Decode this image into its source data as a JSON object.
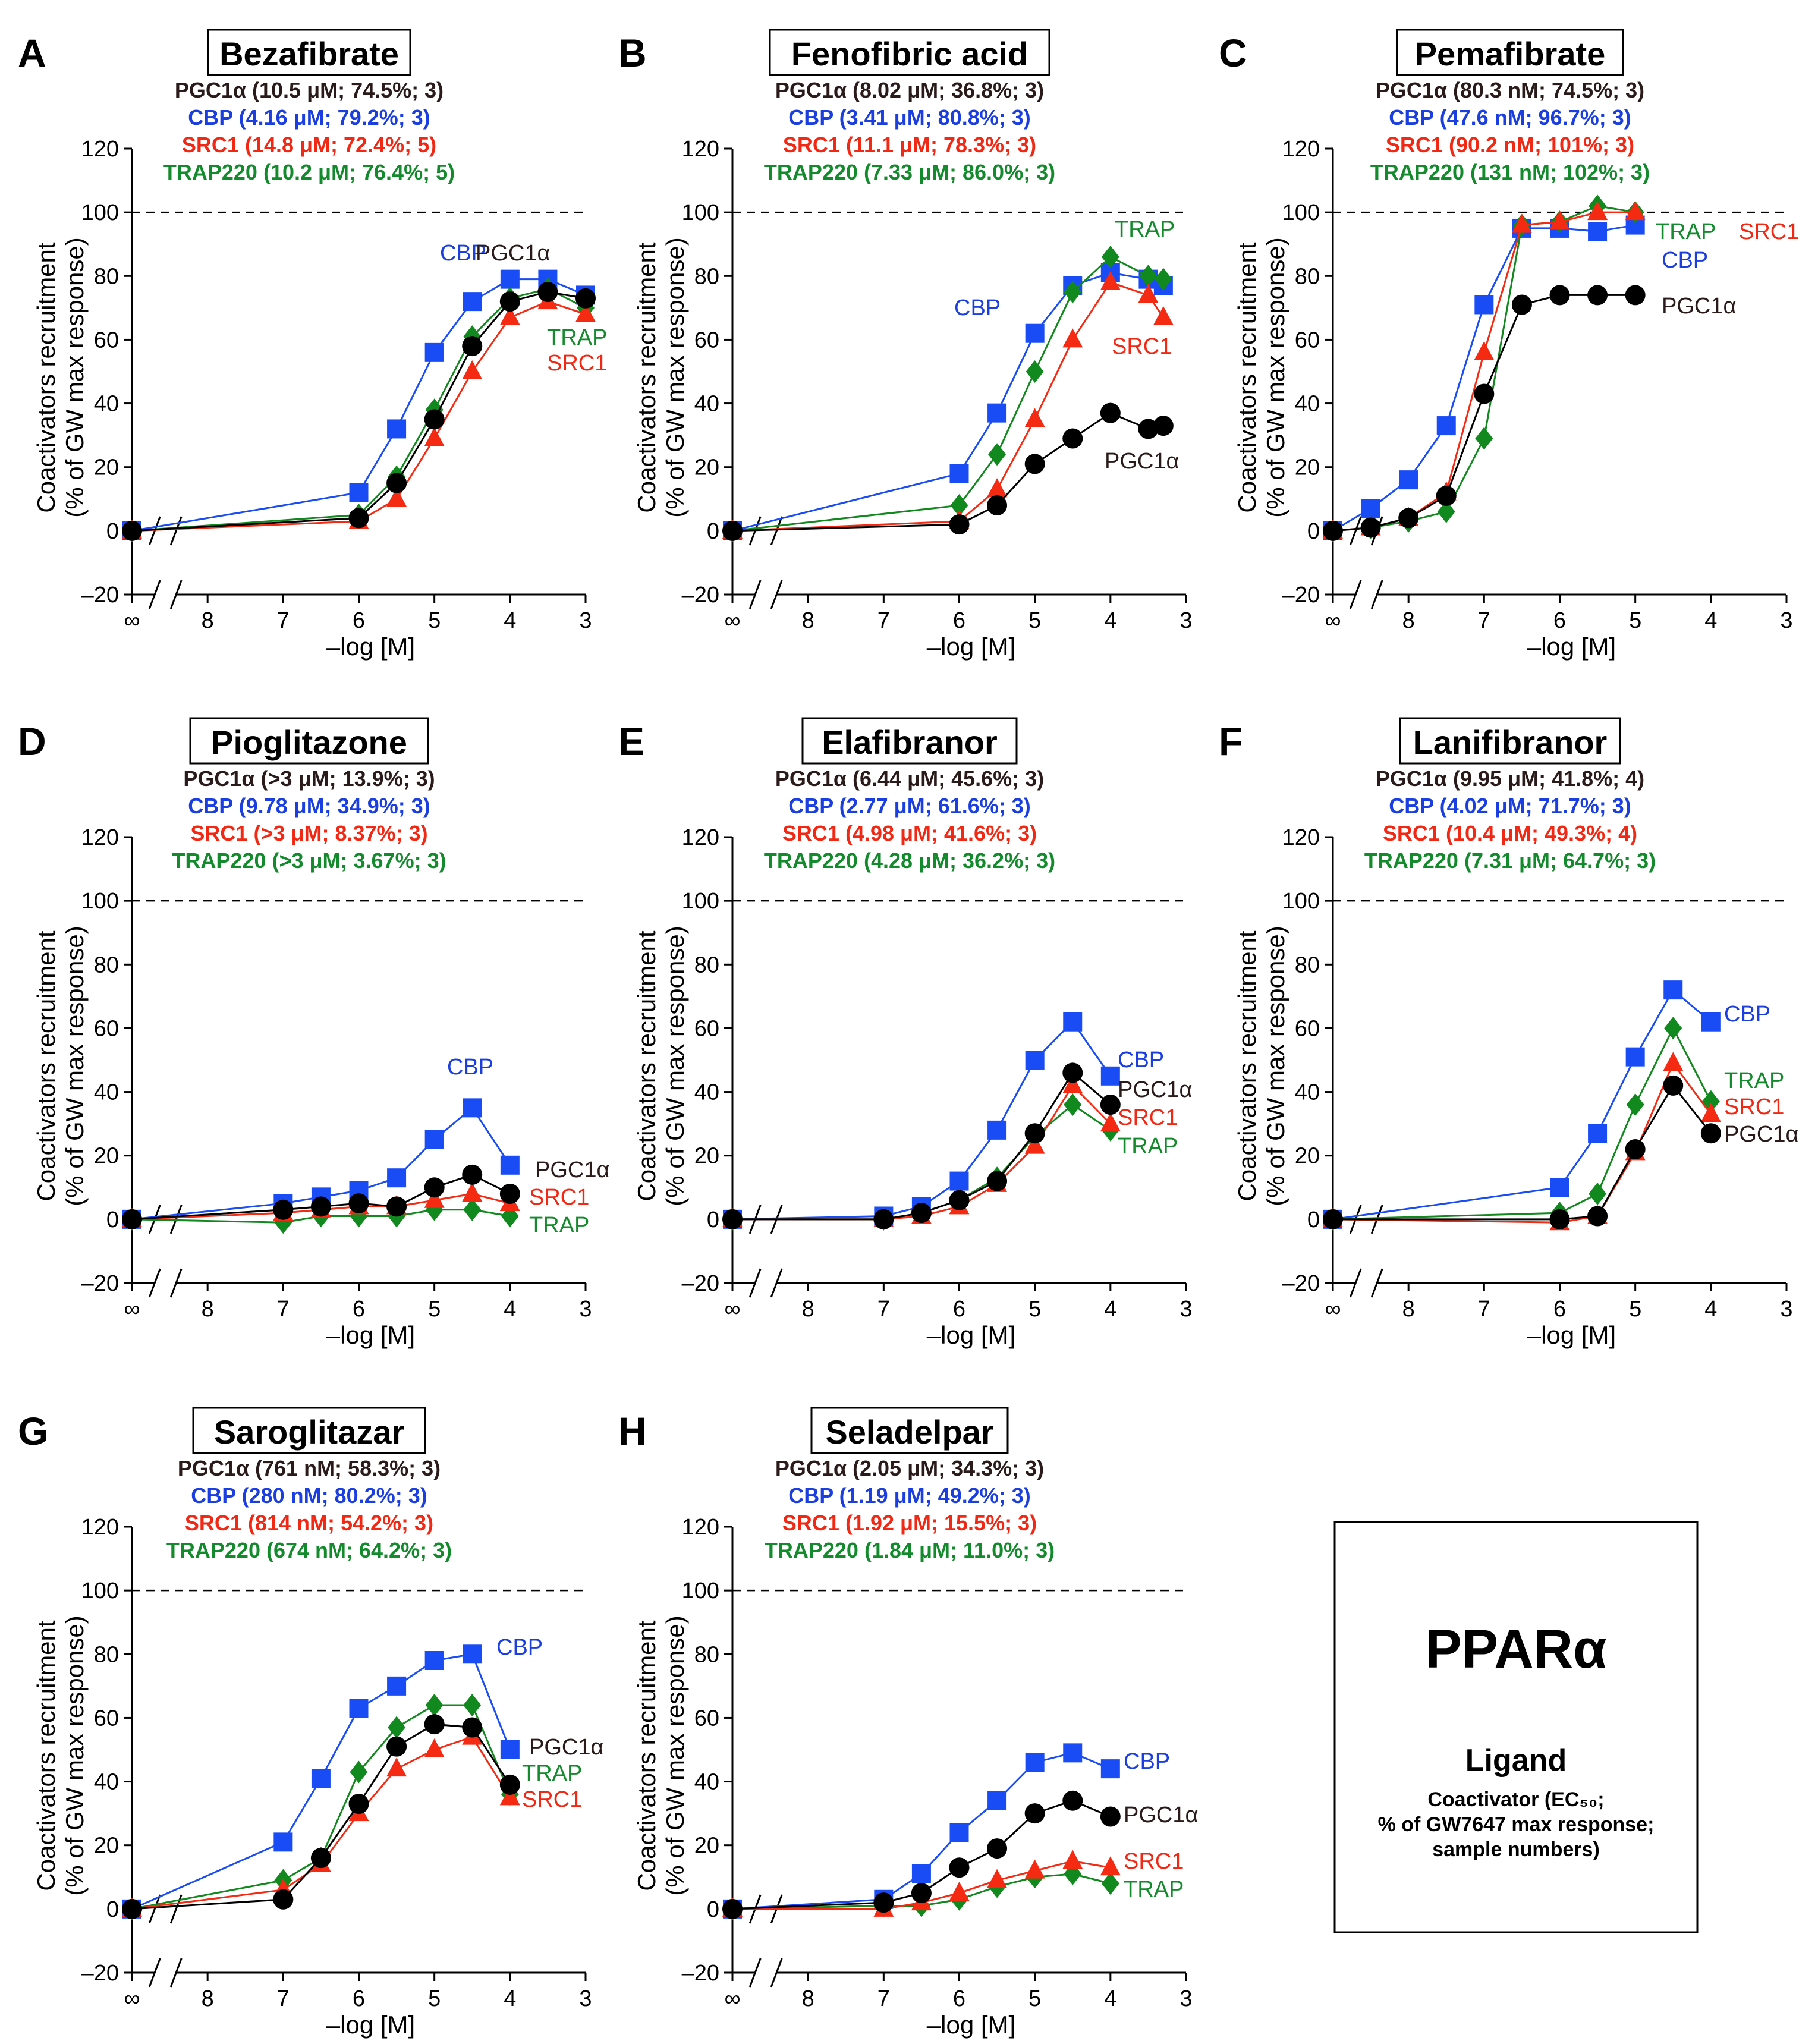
{
  "colors": {
    "PGC1a": "#000000",
    "CBP": "#1a4cf5",
    "SRC1": "#f52a12",
    "TRAP": "#12891e",
    "PGC1a_text": "#2b1a1a",
    "CBP_text": "#1a3ee0",
    "SRC1_text": "#f02814",
    "TRAP_text": "#138a2c"
  },
  "legend": {
    "title": "PPARα",
    "ligand": "Ligand",
    "line1": "Coactivator (EC₅₀;",
    "line2": "% of GW7647 max response;",
    "line3": "sample numbers)"
  },
  "chart_data": [
    {
      "panel": "A",
      "type": "line",
      "title": "Bezafibrate",
      "summary": [
        "PGC1α (10.5 μM; 74.5%; 3)",
        "CBP (4.16 μM; 79.2%; 3)",
        "SRC1 (14.8 μM; 72.4%; 5)",
        "TRAP220 (10.2 μM; 76.4%; 5)"
      ],
      "xlabel": "–log [M]",
      "ylabel": [
        "Coactivators recruitment",
        "(% of GW max response)"
      ],
      "x_ticks": [
        "∞",
        "8",
        "7",
        "6",
        "5",
        "4",
        "3"
      ],
      "y_ticks": [
        "–20",
        "0",
        "20",
        "40",
        "60",
        "80",
        "100",
        "120"
      ],
      "xlim": [
        9,
        3
      ],
      "ylim": [
        -20,
        120
      ],
      "reference_line": 100,
      "x": [
        9,
        6,
        5.5,
        5,
        4.5,
        4,
        3.5,
        3
      ],
      "series": [
        {
          "name": "PGC1α",
          "values": [
            0,
            4,
            15,
            35,
            58,
            72,
            75,
            73
          ],
          "label": "PGC1α"
        },
        {
          "name": "CBP",
          "values": [
            0,
            12,
            32,
            56,
            72,
            79,
            79,
            74
          ],
          "label": "CBP"
        },
        {
          "name": "SRC1",
          "values": [
            0,
            3,
            10,
            29,
            50,
            67,
            72,
            68
          ],
          "label": "SRC1"
        },
        {
          "name": "TRAP",
          "values": [
            0,
            5,
            17,
            38,
            61,
            73,
            76,
            70
          ],
          "label": "TRAP"
        }
      ]
    },
    {
      "panel": "B",
      "type": "line",
      "title": "Fenofibric acid",
      "summary": [
        "PGC1α (8.02 μM; 36.8%; 3)",
        "CBP (3.41 μM; 80.8%; 3)",
        "SRC1 (11.1 μM; 78.3%; 3)",
        "TRAP220 (7.33 μM; 86.0%; 3)"
      ],
      "xlabel": "–log [M]",
      "ylabel": [
        "Coactivators recruitment",
        "(% of GW max response)"
      ],
      "x_ticks": [
        "∞",
        "8",
        "7",
        "6",
        "5",
        "4",
        "3"
      ],
      "y_ticks": [
        "–20",
        "0",
        "20",
        "40",
        "60",
        "80",
        "100",
        "120"
      ],
      "xlim": [
        9,
        3
      ],
      "ylim": [
        -20,
        120
      ],
      "reference_line": 100,
      "x": [
        9,
        6,
        5.5,
        5,
        4.5,
        4,
        3.5,
        3.3
      ],
      "series": [
        {
          "name": "PGC1α",
          "values": [
            0,
            2,
            8,
            21,
            29,
            37,
            32,
            33
          ],
          "label": "PGC1α"
        },
        {
          "name": "CBP",
          "values": [
            0,
            18,
            37,
            62,
            77,
            81,
            79,
            77
          ],
          "label": "CBP"
        },
        {
          "name": "SRC1",
          "values": [
            0,
            3,
            13,
            35,
            60,
            78,
            74,
            67
          ],
          "label": "SRC1"
        },
        {
          "name": "TRAP",
          "values": [
            0,
            8,
            24,
            50,
            75,
            86,
            80,
            79
          ],
          "label": "TRAP"
        }
      ]
    },
    {
      "panel": "C",
      "type": "line",
      "title": "Pemafibrate",
      "summary": [
        "PGC1α (80.3 nM; 74.5%; 3)",
        "CBP (47.6 nM; 96.7%; 3)",
        "SRC1 (90.2 nM; 101%; 3)",
        "TRAP220 (131 nM; 102%; 3)"
      ],
      "xlabel": "–log [M]",
      "ylabel": [
        "Coactivators recruitment",
        "(% of GW max response)"
      ],
      "x_ticks": [
        "∞",
        "8",
        "7",
        "6",
        "5",
        "4",
        "3"
      ],
      "y_ticks": [
        "–20",
        "0",
        "20",
        "40",
        "60",
        "80",
        "100",
        "120"
      ],
      "xlim": [
        9,
        3
      ],
      "ylim": [
        -20,
        120
      ],
      "reference_line": 100,
      "x": [
        9,
        8.5,
        8,
        7.5,
        7,
        6.5,
        6,
        5.5,
        5
      ],
      "series": [
        {
          "name": "PGC1α",
          "values": [
            0,
            1,
            4,
            11,
            43,
            71,
            74,
            74,
            74
          ],
          "label": "PGC1α"
        },
        {
          "name": "CBP",
          "values": [
            0,
            7,
            16,
            33,
            71,
            95,
            95,
            94,
            96
          ],
          "label": "CBP"
        },
        {
          "name": "SRC1",
          "values": [
            0,
            1,
            4,
            12,
            56,
            96,
            97,
            100,
            100
          ],
          "label": "SRC1"
        },
        {
          "name": "TRAP",
          "values": [
            0,
            1,
            3,
            6,
            29,
            96,
            97,
            102,
            100
          ],
          "label": "TRAP"
        }
      ]
    },
    {
      "panel": "D",
      "type": "line",
      "title": "Pioglitazone",
      "summary": [
        "PGC1α (>3 μM; 13.9%; 3)",
        "CBP (9.78 μM; 34.9%; 3)",
        "SRC1 (>3 μM; 8.37%; 3)",
        "TRAP220 (>3 μM; 3.67%; 3)"
      ],
      "xlabel": "–log [M]",
      "ylabel": [
        "Coactivators recruitment",
        "(% of GW max response)"
      ],
      "x_ticks": [
        "∞",
        "8",
        "7",
        "6",
        "5",
        "4",
        "3"
      ],
      "y_ticks": [
        "–20",
        "0",
        "20",
        "40",
        "60",
        "80",
        "100",
        "120"
      ],
      "xlim": [
        9,
        3
      ],
      "ylim": [
        -20,
        120
      ],
      "reference_line": 100,
      "x": [
        9,
        7,
        6.5,
        6,
        5.5,
        5,
        4.5,
        4
      ],
      "series": [
        {
          "name": "PGC1α",
          "values": [
            0,
            3,
            4,
            5,
            4,
            10,
            14,
            8
          ],
          "label": "PGC1α"
        },
        {
          "name": "CBP",
          "values": [
            0,
            5,
            7,
            9,
            13,
            25,
            35,
            17
          ],
          "label": "CBP"
        },
        {
          "name": "SRC1",
          "values": [
            0,
            2,
            3,
            4,
            4,
            6,
            8,
            5
          ],
          "label": "SRC1"
        },
        {
          "name": "TRAP",
          "values": [
            0,
            -1,
            1,
            1,
            1,
            3,
            3,
            1
          ],
          "label": "TRAP"
        }
      ]
    },
    {
      "panel": "E",
      "type": "line",
      "title": "Elafibranor",
      "summary": [
        "PGC1α (6.44 μM; 45.6%; 3)",
        "CBP (2.77 μM; 61.6%; 3)",
        "SRC1 (4.98 μM; 41.6%; 3)",
        "TRAP220 (4.28 μM; 36.2%; 3)"
      ],
      "xlabel": "–log [M]",
      "ylabel": [
        "Coactivators recruitment",
        "(% of GW max response)"
      ],
      "x_ticks": [
        "∞",
        "8",
        "7",
        "6",
        "5",
        "4",
        "3"
      ],
      "y_ticks": [
        "–20",
        "0",
        "20",
        "40",
        "60",
        "80",
        "100",
        "120"
      ],
      "xlim": [
        9,
        3
      ],
      "ylim": [
        -20,
        120
      ],
      "reference_line": 100,
      "x": [
        9,
        7,
        6.5,
        6,
        5.5,
        5,
        4.5,
        4
      ],
      "series": [
        {
          "name": "PGC1α",
          "values": [
            0,
            0,
            2,
            6,
            12,
            27,
            46,
            36
          ],
          "label": "PGC1α"
        },
        {
          "name": "CBP",
          "values": [
            0,
            1,
            4,
            12,
            28,
            50,
            62,
            45
          ],
          "label": "CBP"
        },
        {
          "name": "SRC1",
          "values": [
            0,
            0,
            1,
            4,
            11,
            23,
            42,
            30
          ],
          "label": "SRC1"
        },
        {
          "name": "TRAP",
          "values": [
            0,
            0,
            2,
            6,
            13,
            26,
            36,
            28
          ],
          "label": "TRAP"
        }
      ]
    },
    {
      "panel": "F",
      "type": "line",
      "title": "Lanifibranor",
      "summary": [
        "PGC1α (9.95 μM; 41.8%; 4)",
        "CBP (4.02 μM; 71.7%; 3)",
        "SRC1 (10.4 μM; 49.3%; 4)",
        "TRAP220 (7.31 μM; 64.7%; 3)"
      ],
      "xlabel": "–log [M]",
      "ylabel": [
        "Coactivators recruitment",
        "(% of GW max response)"
      ],
      "x_ticks": [
        "∞",
        "8",
        "7",
        "6",
        "5",
        "4",
        "3"
      ],
      "y_ticks": [
        "–20",
        "0",
        "20",
        "40",
        "60",
        "80",
        "100",
        "120"
      ],
      "xlim": [
        9,
        3
      ],
      "ylim": [
        -20,
        120
      ],
      "reference_line": 100,
      "x": [
        9,
        6,
        5.5,
        5,
        4.5,
        4
      ],
      "series": [
        {
          "name": "PGC1α",
          "values": [
            0,
            0,
            1,
            22,
            42,
            27
          ],
          "label": "PGC1α"
        },
        {
          "name": "CBP",
          "values": [
            0,
            10,
            27,
            51,
            72,
            62
          ],
          "label": "CBP"
        },
        {
          "name": "SRC1",
          "values": [
            0,
            -1,
            1,
            21,
            49,
            33
          ],
          "label": "SRC1"
        },
        {
          "name": "TRAP",
          "values": [
            0,
            2,
            8,
            36,
            60,
            37
          ],
          "label": "TRAP"
        }
      ]
    },
    {
      "panel": "G",
      "type": "line",
      "title": "Saroglitazar",
      "summary": [
        "PGC1α (761 nM; 58.3%; 3)",
        "CBP (280 nM; 80.2%; 3)",
        "SRC1 (814 nM; 54.2%; 3)",
        "TRAP220 (674 nM; 64.2%; 3)"
      ],
      "xlabel": "–log [M]",
      "ylabel": [
        "Coactivators recruitment",
        "(% of GW max response)"
      ],
      "x_ticks": [
        "∞",
        "8",
        "7",
        "6",
        "5",
        "4",
        "3"
      ],
      "y_ticks": [
        "–20",
        "0",
        "20",
        "40",
        "60",
        "80",
        "100",
        "120"
      ],
      "xlim": [
        9,
        3
      ],
      "ylim": [
        -20,
        120
      ],
      "reference_line": 100,
      "x": [
        9,
        7,
        6.5,
        6,
        5.5,
        5,
        4.5,
        4
      ],
      "series": [
        {
          "name": "PGC1α",
          "values": [
            0,
            3,
            16,
            33,
            51,
            58,
            57,
            39
          ],
          "label": "PGC1α"
        },
        {
          "name": "CBP",
          "values": [
            0,
            21,
            41,
            63,
            70,
            78,
            80,
            50
          ],
          "label": "CBP"
        },
        {
          "name": "SRC1",
          "values": [
            0,
            6,
            14,
            30,
            44,
            50,
            54,
            35
          ],
          "label": "SRC1"
        },
        {
          "name": "TRAP",
          "values": [
            0,
            9,
            16,
            43,
            57,
            64,
            64,
            36
          ],
          "label": "TRAP"
        }
      ]
    },
    {
      "panel": "H",
      "type": "line",
      "title": "Seladelpar",
      "summary": [
        "PGC1α (2.05 μM; 34.3%; 3)",
        "CBP (1.19 μM; 49.2%; 3)",
        "SRC1 (1.92 μM; 15.5%; 3)",
        "TRAP220 (1.84 μM; 11.0%; 3)"
      ],
      "xlabel": "–log [M]",
      "ylabel": [
        "Coactivators recruitment",
        "(% of GW max response)"
      ],
      "x_ticks": [
        "∞",
        "8",
        "7",
        "6",
        "5",
        "4",
        "3"
      ],
      "y_ticks": [
        "–20",
        "0",
        "20",
        "40",
        "60",
        "80",
        "100",
        "120"
      ],
      "xlim": [
        9,
        3
      ],
      "ylim": [
        -20,
        120
      ],
      "reference_line": 100,
      "x": [
        9,
        7,
        6.5,
        6,
        5.5,
        5,
        4.5,
        4
      ],
      "series": [
        {
          "name": "PGC1α",
          "values": [
            0,
            2,
            5,
            13,
            19,
            30,
            34,
            29
          ],
          "label": "PGC1α"
        },
        {
          "name": "CBP",
          "values": [
            0,
            3,
            11,
            24,
            34,
            46,
            49,
            44
          ],
          "label": "CBP"
        },
        {
          "name": "SRC1",
          "values": [
            0,
            0,
            2,
            5,
            9,
            12,
            15,
            13
          ],
          "label": "SRC1"
        },
        {
          "name": "TRAP",
          "values": [
            0,
            1,
            1,
            3,
            7,
            10,
            11,
            8
          ],
          "label": "TRAP"
        }
      ]
    }
  ]
}
